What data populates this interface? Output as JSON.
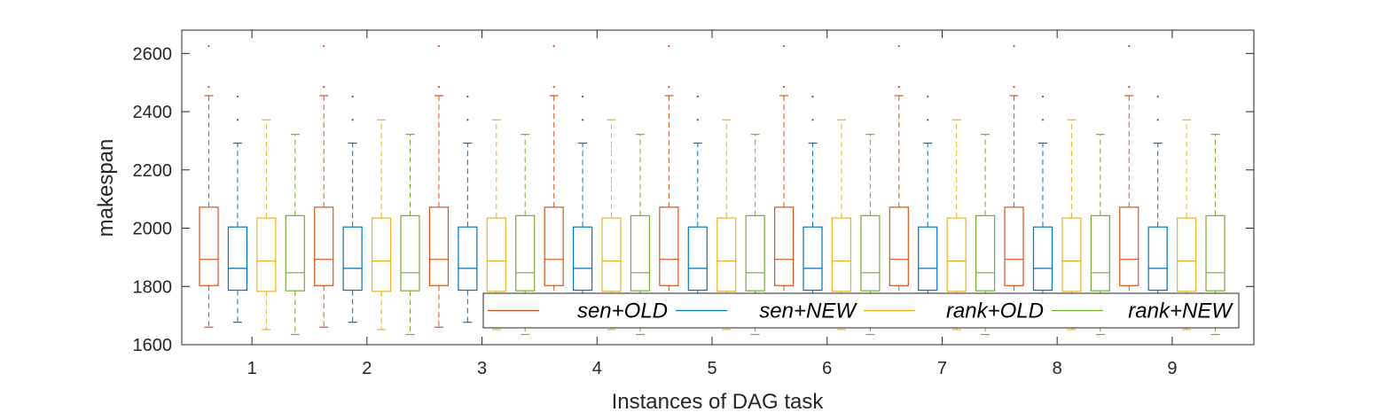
{
  "chart_data": {
    "type": "box",
    "xlabel": "Instances of DAG task",
    "ylabel": "makespan",
    "ylim": [
      1600,
      2680
    ],
    "yticks": [
      1600,
      1800,
      2000,
      2200,
      2400,
      2600
    ],
    "categories": [
      "1",
      "2",
      "3",
      "4",
      "5",
      "6",
      "7",
      "8",
      "9"
    ],
    "grid": false,
    "legend": {
      "placement": "bottom-right",
      "orientation": "horizontal"
    },
    "series": [
      {
        "name": "sen+OLD",
        "color": "#D95319",
        "box": {
          "whisker_low": 1660,
          "q1": 1803,
          "median": 1893,
          "q3": 2072,
          "whisker_high": 2455
        },
        "outliers": [
          2485,
          2625
        ]
      },
      {
        "name": "sen+NEW",
        "color": "#0072BD",
        "box": {
          "whisker_low": 1677,
          "q1": 1787,
          "median": 1862,
          "q3": 2004,
          "whisker_high": 2292
        },
        "outliers": [
          2372,
          2452
        ]
      },
      {
        "name": "rank+OLD",
        "color": "#EDB120",
        "box": {
          "whisker_low": 1652,
          "q1": 1783,
          "median": 1887,
          "q3": 2035,
          "whisker_high": 2372
        },
        "outliers": []
      },
      {
        "name": "rank+NEW",
        "color": "#77AC30",
        "box": {
          "whisker_low": 1635,
          "q1": 1785,
          "median": 1847,
          "q3": 2043,
          "whisker_high": 2322
        },
        "outliers": []
      }
    ]
  }
}
